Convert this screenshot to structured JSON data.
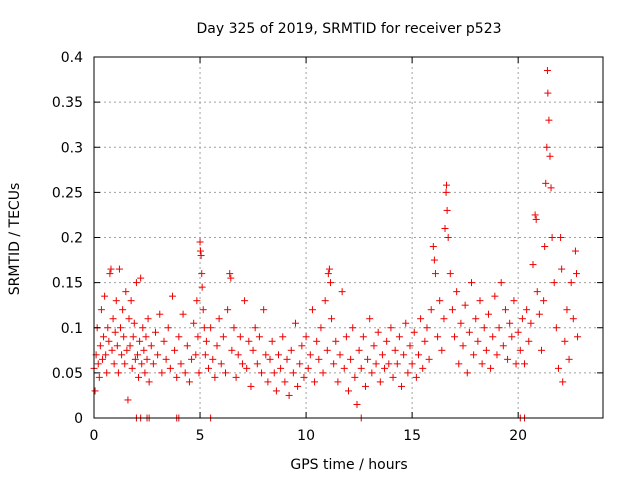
{
  "colors": {
    "series": "#ee0000",
    "axis": "#000000",
    "grid": "#a0a0a0",
    "background": "#ffffff"
  },
  "chart_data": {
    "type": "scatter",
    "title": "Day 325 of 2019, SRMTID for receiver p523",
    "xlabel": "GPS time / hours",
    "ylabel": "SRMTID / TECUs",
    "xlim": [
      0,
      24
    ],
    "ylim": [
      0,
      0.4
    ],
    "xticks": [
      0,
      5,
      10,
      15,
      20
    ],
    "xtick_labels": [
      "0",
      "5",
      "10",
      "15",
      "20"
    ],
    "yticks": [
      0,
      0.05,
      0.1,
      0.15,
      0.2,
      0.25,
      0.3,
      0.35,
      0.4
    ],
    "ytick_labels": [
      "0",
      "0.05",
      "0.1",
      "0.15",
      "0.2",
      "0.25",
      "0.3",
      "0.35",
      "0.4"
    ],
    "grid": true,
    "marker": "plus",
    "series": [
      {
        "name": "SRMTID",
        "points": [
          [
            0.0,
            0.055
          ],
          [
            0.05,
            0.03
          ],
          [
            0.1,
            0.07
          ],
          [
            0.15,
            0.1
          ],
          [
            0.2,
            0.06
          ],
          [
            0.25,
            0.045
          ],
          [
            0.3,
            0.08
          ],
          [
            0.35,
            0.12
          ],
          [
            0.4,
            0.065
          ],
          [
            0.45,
            0.09
          ],
          [
            0.5,
            0.135
          ],
          [
            0.55,
            0.07
          ],
          [
            0.6,
            0.05
          ],
          [
            0.65,
            0.1
          ],
          [
            0.7,
            0.085
          ],
          [
            0.75,
            0.16
          ],
          [
            0.8,
            0.165
          ],
          [
            0.85,
            0.075
          ],
          [
            0.9,
            0.11
          ],
          [
            0.95,
            0.06
          ],
          [
            1.0,
            0.095
          ],
          [
            1.05,
            0.13
          ],
          [
            1.1,
            0.08
          ],
          [
            1.15,
            0.05
          ],
          [
            1.2,
            0.165
          ],
          [
            1.25,
            0.1
          ],
          [
            1.3,
            0.07
          ],
          [
            1.35,
            0.12
          ],
          [
            1.4,
            0.09
          ],
          [
            1.45,
            0.06
          ],
          [
            1.5,
            0.14
          ],
          [
            1.55,
            0.075
          ],
          [
            1.6,
            0.02
          ],
          [
            1.65,
            0.11
          ],
          [
            1.7,
            0.08
          ],
          [
            1.75,
            0.13
          ],
          [
            1.8,
            0.055
          ],
          [
            1.85,
            0.09
          ],
          [
            1.9,
            0.105
          ],
          [
            1.95,
            0.065
          ],
          [
            2.0,
            0.15
          ],
          [
            2.05,
            0.07
          ],
          [
            2.1,
            0.045
          ],
          [
            2.15,
            0.085
          ],
          [
            2.2,
            0.155
          ],
          [
            2.25,
            0.06
          ],
          [
            2.3,
            0.1
          ],
          [
            2.35,
            0.075
          ],
          [
            2.4,
            0.05
          ],
          [
            2.45,
            0.09
          ],
          [
            2.5,
            0.065
          ],
          [
            2.55,
            0.11
          ],
          [
            2.6,
            0.04
          ],
          [
            2.7,
            0.08
          ],
          [
            2.8,
            0.06
          ],
          [
            2.9,
            0.095
          ],
          [
            3.0,
            0.07
          ],
          [
            3.1,
            0.115
          ],
          [
            3.2,
            0.05
          ],
          [
            3.3,
            0.085
          ],
          [
            3.4,
            0.065
          ],
          [
            3.5,
            0.1
          ],
          [
            3.6,
            0.055
          ],
          [
            3.7,
            0.135
          ],
          [
            3.8,
            0.075
          ],
          [
            3.9,
            0.045
          ],
          [
            4.0,
            0.09
          ],
          [
            4.1,
            0.06
          ],
          [
            4.2,
            0.115
          ],
          [
            4.3,
            0.05
          ],
          [
            4.4,
            0.08
          ],
          [
            4.5,
            0.04
          ],
          [
            4.6,
            0.065
          ],
          [
            4.7,
            0.105
          ],
          [
            4.8,
            0.07
          ],
          [
            4.85,
            0.13
          ],
          [
            4.9,
            0.09
          ],
          [
            4.95,
            0.05
          ],
          [
            5.0,
            0.195
          ],
          [
            5.02,
            0.185
          ],
          [
            5.05,
            0.18
          ],
          [
            5.08,
            0.16
          ],
          [
            5.1,
            0.145
          ],
          [
            5.15,
            0.12
          ],
          [
            5.2,
            0.1
          ],
          [
            5.25,
            0.07
          ],
          [
            5.3,
            0.085
          ],
          [
            5.4,
            0.055
          ],
          [
            5.5,
            0.1
          ],
          [
            5.6,
            0.065
          ],
          [
            5.7,
            0.045
          ],
          [
            5.8,
            0.08
          ],
          [
            5.9,
            0.11
          ],
          [
            6.0,
            0.06
          ],
          [
            6.1,
            0.09
          ],
          [
            6.2,
            0.05
          ],
          [
            6.3,
            0.12
          ],
          [
            6.4,
            0.16
          ],
          [
            6.45,
            0.155
          ],
          [
            6.5,
            0.075
          ],
          [
            6.6,
            0.1
          ],
          [
            6.7,
            0.045
          ],
          [
            6.8,
            0.07
          ],
          [
            6.9,
            0.09
          ],
          [
            7.0,
            0.06
          ],
          [
            7.1,
            0.13
          ],
          [
            7.2,
            0.055
          ],
          [
            7.3,
            0.085
          ],
          [
            7.4,
            0.035
          ],
          [
            7.5,
            0.075
          ],
          [
            7.6,
            0.1
          ],
          [
            7.7,
            0.06
          ],
          [
            7.8,
            0.09
          ],
          [
            7.9,
            0.05
          ],
          [
            8.0,
            0.12
          ],
          [
            8.1,
            0.07
          ],
          [
            8.2,
            0.04
          ],
          [
            8.3,
            0.065
          ],
          [
            8.4,
            0.085
          ],
          [
            8.5,
            0.05
          ],
          [
            8.6,
            0.03
          ],
          [
            8.7,
            0.07
          ],
          [
            8.8,
            0.055
          ],
          [
            8.9,
            0.09
          ],
          [
            9.0,
            0.04
          ],
          [
            9.1,
            0.065
          ],
          [
            9.2,
            0.025
          ],
          [
            9.3,
            0.075
          ],
          [
            9.4,
            0.05
          ],
          [
            9.5,
            0.105
          ],
          [
            9.6,
            0.035
          ],
          [
            9.7,
            0.06
          ],
          [
            9.8,
            0.08
          ],
          [
            9.9,
            0.045
          ],
          [
            10.0,
            0.09
          ],
          [
            10.1,
            0.055
          ],
          [
            10.2,
            0.07
          ],
          [
            10.3,
            0.12
          ],
          [
            10.4,
            0.04
          ],
          [
            10.5,
            0.085
          ],
          [
            10.6,
            0.065
          ],
          [
            10.7,
            0.1
          ],
          [
            10.8,
            0.05
          ],
          [
            10.9,
            0.13
          ],
          [
            11.0,
            0.075
          ],
          [
            11.05,
            0.16
          ],
          [
            11.1,
            0.165
          ],
          [
            11.15,
            0.15
          ],
          [
            11.2,
            0.11
          ],
          [
            11.3,
            0.06
          ],
          [
            11.4,
            0.085
          ],
          [
            11.5,
            0.04
          ],
          [
            11.6,
            0.07
          ],
          [
            11.7,
            0.14
          ],
          [
            11.8,
            0.055
          ],
          [
            11.9,
            0.09
          ],
          [
            12.0,
            0.03
          ],
          [
            12.1,
            0.065
          ],
          [
            12.2,
            0.1
          ],
          [
            12.3,
            0.045
          ],
          [
            12.4,
            0.015
          ],
          [
            12.5,
            0.075
          ],
          [
            12.6,
            0.055
          ],
          [
            12.7,
            0.09
          ],
          [
            12.8,
            0.035
          ],
          [
            12.9,
            0.065
          ],
          [
            13.0,
            0.11
          ],
          [
            13.1,
            0.05
          ],
          [
            13.2,
            0.08
          ],
          [
            13.3,
            0.06
          ],
          [
            13.4,
            0.095
          ],
          [
            13.5,
            0.04
          ],
          [
            13.6,
            0.07
          ],
          [
            13.7,
            0.055
          ],
          [
            13.8,
            0.085
          ],
          [
            13.9,
            0.06
          ],
          [
            14.0,
            0.1
          ],
          [
            14.1,
            0.045
          ],
          [
            14.2,
            0.075
          ],
          [
            14.3,
            0.06
          ],
          [
            14.4,
            0.09
          ],
          [
            14.5,
            0.035
          ],
          [
            14.6,
            0.07
          ],
          [
            14.7,
            0.105
          ],
          [
            14.8,
            0.05
          ],
          [
            14.9,
            0.08
          ],
          [
            15.0,
            0.06
          ],
          [
            15.1,
            0.095
          ],
          [
            15.2,
            0.045
          ],
          [
            15.3,
            0.07
          ],
          [
            15.4,
            0.11
          ],
          [
            15.5,
            0.055
          ],
          [
            15.6,
            0.085
          ],
          [
            15.7,
            0.1
          ],
          [
            15.8,
            0.065
          ],
          [
            15.9,
            0.12
          ],
          [
            16.0,
            0.19
          ],
          [
            16.05,
            0.175
          ],
          [
            16.1,
            0.16
          ],
          [
            16.2,
            0.09
          ],
          [
            16.3,
            0.13
          ],
          [
            16.4,
            0.075
          ],
          [
            16.5,
            0.11
          ],
          [
            16.55,
            0.21
          ],
          [
            16.6,
            0.25
          ],
          [
            16.62,
            0.258
          ],
          [
            16.65,
            0.23
          ],
          [
            16.7,
            0.2
          ],
          [
            16.8,
            0.16
          ],
          [
            16.9,
            0.12
          ],
          [
            17.0,
            0.09
          ],
          [
            17.1,
            0.14
          ],
          [
            17.2,
            0.06
          ],
          [
            17.3,
            0.105
          ],
          [
            17.4,
            0.08
          ],
          [
            17.5,
            0.125
          ],
          [
            17.6,
            0.05
          ],
          [
            17.7,
            0.095
          ],
          [
            17.8,
            0.15
          ],
          [
            17.9,
            0.07
          ],
          [
            18.0,
            0.11
          ],
          [
            18.1,
            0.085
          ],
          [
            18.2,
            0.13
          ],
          [
            18.3,
            0.06
          ],
          [
            18.4,
            0.1
          ],
          [
            18.5,
            0.075
          ],
          [
            18.6,
            0.115
          ],
          [
            18.7,
            0.055
          ],
          [
            18.8,
            0.09
          ],
          [
            18.9,
            0.135
          ],
          [
            19.0,
            0.07
          ],
          [
            19.1,
            0.1
          ],
          [
            19.2,
            0.15
          ],
          [
            19.3,
            0.08
          ],
          [
            19.4,
            0.12
          ],
          [
            19.5,
            0.065
          ],
          [
            19.6,
            0.105
          ],
          [
            19.7,
            0.09
          ],
          [
            19.8,
            0.13
          ],
          [
            19.9,
            0.06
          ],
          [
            20.0,
            0.095
          ],
          [
            20.1,
            0.075
          ],
          [
            20.2,
            0.11
          ],
          [
            20.3,
            0.06
          ],
          [
            20.4,
            0.12
          ],
          [
            20.5,
            0.085
          ],
          [
            20.6,
            0.105
          ],
          [
            20.7,
            0.17
          ],
          [
            20.8,
            0.225
          ],
          [
            20.85,
            0.22
          ],
          [
            20.9,
            0.14
          ],
          [
            21.0,
            0.115
          ],
          [
            21.1,
            0.075
          ],
          [
            21.2,
            0.13
          ],
          [
            21.25,
            0.19
          ],
          [
            21.3,
            0.26
          ],
          [
            21.35,
            0.3
          ],
          [
            21.38,
            0.385
          ],
          [
            21.4,
            0.36
          ],
          [
            21.45,
            0.33
          ],
          [
            21.5,
            0.29
          ],
          [
            21.55,
            0.255
          ],
          [
            21.6,
            0.2
          ],
          [
            21.7,
            0.15
          ],
          [
            21.8,
            0.1
          ],
          [
            21.9,
            0.055
          ],
          [
            22.0,
            0.2
          ],
          [
            22.05,
            0.165
          ],
          [
            22.1,
            0.04
          ],
          [
            22.2,
            0.085
          ],
          [
            22.3,
            0.12
          ],
          [
            22.4,
            0.065
          ],
          [
            22.5,
            0.15
          ],
          [
            22.6,
            0.11
          ],
          [
            22.7,
            0.185
          ],
          [
            22.75,
            0.16
          ],
          [
            22.8,
            0.09
          ]
        ],
        "zero_points_x": [
          2.0,
          2.2,
          2.5,
          2.6,
          3.9,
          4.0,
          5.5,
          12.6,
          20.1,
          20.3
        ]
      }
    ]
  }
}
